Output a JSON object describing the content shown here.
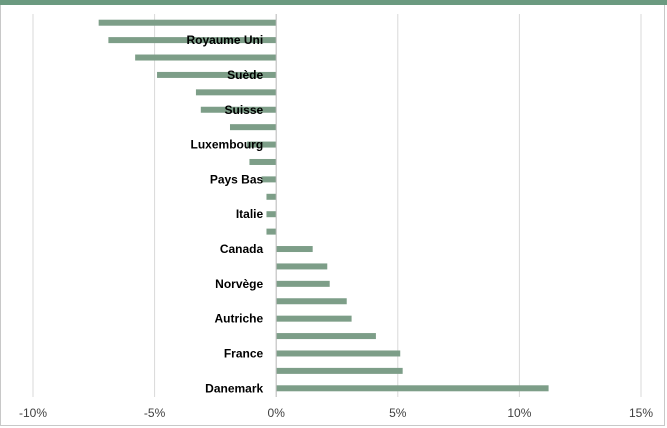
{
  "chart_data": {
    "type": "bar",
    "orientation": "horizontal",
    "categories": [
      "",
      "Royaume Uni",
      "",
      "Suède",
      "",
      "Suisse",
      "",
      "Luxembourg",
      "",
      "Pays Bas",
      "",
      "Italie",
      "",
      "Canada",
      "",
      "Norvège",
      "",
      "Autriche",
      "",
      "France",
      "",
      "Danemark"
    ],
    "values": [
      -7.3,
      -6.9,
      -5.8,
      -4.9,
      -3.3,
      -3.1,
      -1.9,
      -1.2,
      -1.1,
      -0.6,
      -0.4,
      -0.4,
      -0.4,
      1.5,
      2.1,
      2.2,
      2.9,
      3.1,
      4.1,
      5.1,
      5.2,
      11.2
    ],
    "xlim": [
      -10,
      15
    ],
    "x_ticks": [
      "-10%",
      "-5%",
      "0%",
      "5%",
      "10%",
      "15%"
    ],
    "x_tick_values": [
      -10,
      -5,
      0,
      5,
      10,
      15
    ],
    "grid": "vertical",
    "bar_color": "#7d9e88",
    "accent_color": "#6b9a80"
  }
}
